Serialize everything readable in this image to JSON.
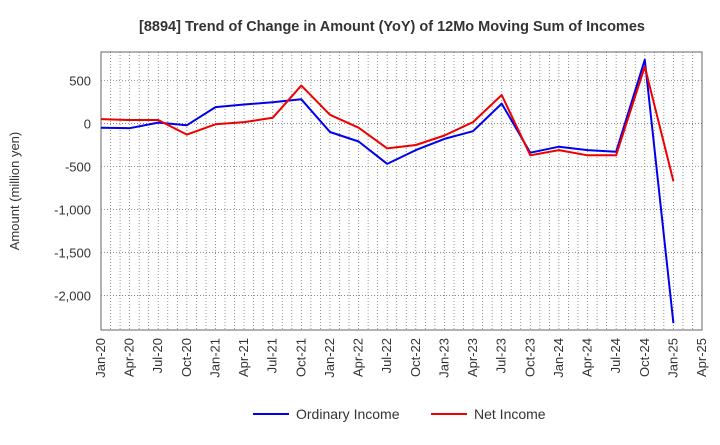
{
  "chart_data": {
    "type": "line",
    "title": "[8894]  Trend of Change in Amount (YoY) of 12Mo Moving Sum of Incomes",
    "xlabel": "",
    "ylabel": "Amount (million yen)",
    "ylim": [
      -2400,
      830
    ],
    "yticks": [
      500,
      0,
      -500,
      -1000,
      -1500,
      -2000
    ],
    "ytick_labels": [
      "500",
      "0",
      "-500",
      "-1,000",
      "-1,500",
      "-2,000"
    ],
    "x_tick_labels": [
      "Jan-20",
      "Apr-20",
      "Jul-20",
      "Oct-20",
      "Jan-21",
      "Apr-21",
      "Jul-21",
      "Oct-21",
      "Jan-22",
      "Apr-22",
      "Jul-22",
      "Oct-22",
      "Jan-23",
      "Apr-23",
      "Jul-23",
      "Oct-23",
      "Jan-24",
      "Apr-24",
      "Jul-24",
      "Oct-24",
      "Jan-25",
      "Apr-25"
    ],
    "categories": [
      "Jan-20",
      "Apr-20",
      "Jul-20",
      "Oct-20",
      "Jan-21",
      "Apr-21",
      "Jul-21",
      "Oct-21",
      "Jan-22",
      "Apr-22",
      "Jul-22",
      "Oct-22",
      "Jan-23",
      "Apr-23",
      "Jul-23",
      "Oct-23",
      "Jan-24",
      "Apr-24",
      "Jul-24",
      "Oct-24",
      "Jan-25"
    ],
    "grid": true,
    "legend_position": "bottom",
    "series": [
      {
        "name": "Ordinary Income",
        "color": "#0000ee",
        "values": [
          -50,
          -55,
          10,
          -20,
          190,
          220,
          245,
          280,
          -100,
          -210,
          -470,
          -310,
          -180,
          -90,
          230,
          -340,
          -270,
          -310,
          -330,
          740,
          -2320
        ]
      },
      {
        "name": "Net Income",
        "color": "#ee0000",
        "values": [
          50,
          40,
          40,
          -130,
          -10,
          15,
          65,
          440,
          100,
          -50,
          -290,
          -250,
          -140,
          15,
          330,
          -370,
          -310,
          -370,
          -370,
          660,
          -670
        ]
      }
    ]
  }
}
